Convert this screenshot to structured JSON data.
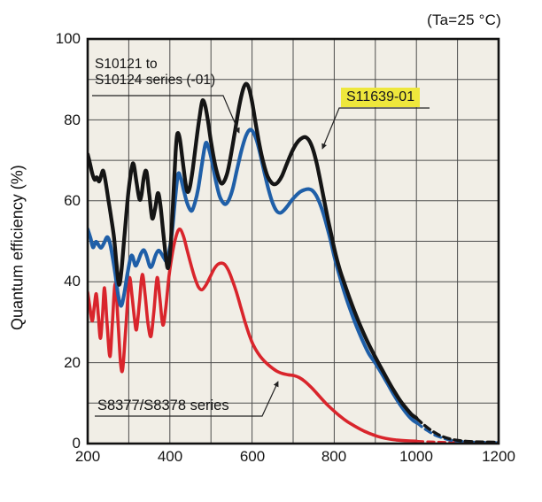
{
  "title": "(Ta=25 °C)",
  "y_axis_label": "Quantum efficiency (%)",
  "annotations": {
    "s10121_line1": "S10121 to",
    "s10121_line2": "S10124 series (-01)",
    "s11639": "S11639-01",
    "s8377": "S8377/S8378 series"
  },
  "colors": {
    "black_series": "#151515",
    "blue_series": "#1f5fa8",
    "red_series": "#d9252c",
    "highlight_yellow": "#eee73c",
    "plot_background": "#f1eee6",
    "gridline": "#4d4d4d",
    "frame": "#111111"
  },
  "chart_data": {
    "type": "line",
    "title": "(Ta=25 °C)",
    "xlabel": "",
    "ylabel": "Quantum efficiency (%)",
    "xlim": [
      200,
      1200
    ],
    "ylim": [
      0,
      100
    ],
    "x_ticks": [
      200,
      400,
      600,
      800,
      1000,
      1200
    ],
    "y_ticks": [
      0,
      20,
      40,
      60,
      80,
      100
    ],
    "x_grid_step": 100,
    "y_grid_step": 10,
    "grid": true,
    "legend_position": "annotated-on-chart",
    "dashed_beyond_x": 1000,
    "series": [
      {
        "name": "S11639-01",
        "color": "#151515",
        "width": 4.3,
        "points": [
          [
            200,
            71.5
          ],
          [
            205,
            69.5
          ],
          [
            211,
            66.8
          ],
          [
            217,
            65.2
          ],
          [
            222,
            65.8
          ],
          [
            228,
            64.8
          ],
          [
            233,
            66.3
          ],
          [
            238,
            67.4
          ],
          [
            244,
            64.5
          ],
          [
            250,
            60.5
          ],
          [
            257,
            56
          ],
          [
            264,
            51
          ],
          [
            270,
            44.5
          ],
          [
            276,
            39.3
          ],
          [
            282,
            42.5
          ],
          [
            290,
            52
          ],
          [
            299,
            62
          ],
          [
            307,
            68
          ],
          [
            312,
            69
          ],
          [
            319,
            64.5
          ],
          [
            326,
            60.4
          ],
          [
            331,
            61.5
          ],
          [
            337,
            66
          ],
          [
            343,
            67.2
          ],
          [
            350,
            61.5
          ],
          [
            357,
            55.7
          ],
          [
            364,
            58
          ],
          [
            371,
            61.9
          ],
          [
            377,
            59
          ],
          [
            384,
            52
          ],
          [
            391,
            45.5
          ],
          [
            396,
            43.5
          ],
          [
            402,
            49
          ],
          [
            408,
            60
          ],
          [
            414,
            72
          ],
          [
            418,
            76.5
          ],
          [
            424,
            75.5
          ],
          [
            431,
            70
          ],
          [
            438,
            64.5
          ],
          [
            443,
            62.2
          ],
          [
            449,
            63.5
          ],
          [
            456,
            68
          ],
          [
            464,
            74.5
          ],
          [
            472,
            80.5
          ],
          [
            479,
            84.7
          ],
          [
            486,
            83.5
          ],
          [
            493,
            79.5
          ],
          [
            501,
            74
          ],
          [
            510,
            69
          ],
          [
            518,
            65.8
          ],
          [
            525,
            64.3
          ],
          [
            532,
            64.8
          ],
          [
            540,
            67
          ],
          [
            549,
            71.5
          ],
          [
            559,
            77.5
          ],
          [
            569,
            83.5
          ],
          [
            578,
            87.5
          ],
          [
            585,
            88.9
          ],
          [
            592,
            88
          ],
          [
            600,
            84.5
          ],
          [
            609,
            79
          ],
          [
            618,
            73.8
          ],
          [
            628,
            69.3
          ],
          [
            638,
            66
          ],
          [
            648,
            64.4
          ],
          [
            656,
            64.1
          ],
          [
            664,
            64.7
          ],
          [
            673,
            66.2
          ],
          [
            683,
            68.7
          ],
          [
            693,
            71.2
          ],
          [
            703,
            73.3
          ],
          [
            713,
            74.8
          ],
          [
            723,
            75.6
          ],
          [
            731,
            75.7
          ],
          [
            740,
            74.7
          ],
          [
            749,
            72.5
          ],
          [
            758,
            69
          ],
          [
            767,
            64.5
          ],
          [
            776,
            59.8
          ],
          [
            785,
            55.3
          ],
          [
            793,
            51.5
          ],
          [
            801,
            47.8
          ],
          [
            812,
            43.5
          ],
          [
            824,
            39.8
          ],
          [
            837,
            36
          ],
          [
            850,
            32.5
          ],
          [
            864,
            29
          ],
          [
            878,
            25.8
          ],
          [
            892,
            22.9
          ],
          [
            906,
            20.2
          ],
          [
            920,
            17.6
          ],
          [
            934,
            15
          ],
          [
            948,
            12.6
          ],
          [
            962,
            10.4
          ],
          [
            976,
            8.6
          ],
          [
            988,
            7.2
          ],
          [
            1000,
            6.3
          ]
        ],
        "points_dashed": [
          [
            1000,
            6.3
          ],
          [
            1015,
            4.9
          ],
          [
            1030,
            3.7
          ],
          [
            1045,
            2.7
          ],
          [
            1060,
            1.9
          ],
          [
            1080,
            1.2
          ],
          [
            1100,
            0.8
          ],
          [
            1130,
            0.5
          ],
          [
            1160,
            0.4
          ],
          [
            1200,
            0.35
          ]
        ]
      },
      {
        "name": "S10121 to S10124 series (-01)",
        "color": "#1f5fa8",
        "width": 4.1,
        "points": [
          [
            200,
            53
          ],
          [
            207,
            50.8
          ],
          [
            213,
            48.5
          ],
          [
            220,
            49.9
          ],
          [
            227,
            49
          ],
          [
            233,
            48.4
          ],
          [
            240,
            49.6
          ],
          [
            247,
            51
          ],
          [
            253,
            50
          ],
          [
            260,
            46.5
          ],
          [
            267,
            42
          ],
          [
            274,
            36.8
          ],
          [
            281,
            34
          ],
          [
            288,
            36.5
          ],
          [
            296,
            41.5
          ],
          [
            304,
            45.8
          ],
          [
            309,
            46.3
          ],
          [
            316,
            44
          ],
          [
            322,
            44.9
          ],
          [
            330,
            47
          ],
          [
            337,
            47.8
          ],
          [
            344,
            46.2
          ],
          [
            351,
            43.8
          ],
          [
            357,
            44
          ],
          [
            365,
            46.5
          ],
          [
            372,
            47.7
          ],
          [
            379,
            47
          ],
          [
            386,
            45.8
          ],
          [
            392,
            45.2
          ],
          [
            399,
            47.8
          ],
          [
            406,
            53
          ],
          [
            413,
            60.5
          ],
          [
            420,
            66.6
          ],
          [
            427,
            65.4
          ],
          [
            434,
            62.5
          ],
          [
            441,
            59.8
          ],
          [
            448,
            58
          ],
          [
            454,
            57.6
          ],
          [
            461,
            59.5
          ],
          [
            469,
            63
          ],
          [
            478,
            69
          ],
          [
            487,
            74.2
          ],
          [
            495,
            72.8
          ],
          [
            503,
            69.5
          ],
          [
            512,
            64.8
          ],
          [
            521,
            61.2
          ],
          [
            529,
            59.6
          ],
          [
            536,
            59.2
          ],
          [
            544,
            60.3
          ],
          [
            553,
            63
          ],
          [
            563,
            67.5
          ],
          [
            574,
            72.3
          ],
          [
            585,
            76
          ],
          [
            594,
            77.5
          ],
          [
            602,
            77.1
          ],
          [
            611,
            75
          ],
          [
            620,
            71.5
          ],
          [
            630,
            67
          ],
          [
            640,
            62.8
          ],
          [
            650,
            59.5
          ],
          [
            659,
            57.6
          ],
          [
            668,
            57
          ],
          [
            677,
            57.6
          ],
          [
            687,
            58.8
          ],
          [
            697,
            60.2
          ],
          [
            707,
            61.3
          ],
          [
            717,
            62.2
          ],
          [
            727,
            62.7
          ],
          [
            737,
            62.9
          ],
          [
            746,
            62.6
          ],
          [
            755,
            61.5
          ],
          [
            764,
            59.6
          ],
          [
            773,
            57
          ],
          [
            782,
            53.8
          ],
          [
            791,
            50.3
          ],
          [
            800,
            46.3
          ],
          [
            812,
            41.8
          ],
          [
            825,
            37.3
          ],
          [
            840,
            32.8
          ],
          [
            855,
            28.8
          ],
          [
            870,
            25.2
          ],
          [
            885,
            22.1
          ],
          [
            900,
            19.9
          ],
          [
            915,
            17.4
          ],
          [
            930,
            14.8
          ],
          [
            945,
            12.1
          ],
          [
            960,
            9.7
          ],
          [
            975,
            7.6
          ],
          [
            990,
            5.9
          ],
          [
            1000,
            5.2
          ]
        ],
        "points_dashed": [
          [
            1000,
            5.2
          ],
          [
            1015,
            4
          ],
          [
            1030,
            3
          ],
          [
            1045,
            2.1
          ],
          [
            1060,
            1.5
          ],
          [
            1080,
            0.9
          ],
          [
            1100,
            0.6
          ],
          [
            1130,
            0.4
          ],
          [
            1160,
            0.3
          ],
          [
            1200,
            0.25
          ]
        ]
      },
      {
        "name": "S8377/S8378 series",
        "color": "#d9252c",
        "width": 3.6,
        "points": [
          [
            200,
            37.4
          ],
          [
            205,
            34
          ],
          [
            211,
            30.3
          ],
          [
            216,
            33.8
          ],
          [
            221,
            37
          ],
          [
            226,
            31.5
          ],
          [
            231,
            26
          ],
          [
            236,
            31.5
          ],
          [
            241,
            38.5
          ],
          [
            247,
            30
          ],
          [
            254,
            21.5
          ],
          [
            260,
            29.5
          ],
          [
            267,
            39.5
          ],
          [
            274,
            30
          ],
          [
            280,
            20
          ],
          [
            285,
            18.2
          ],
          [
            291,
            26
          ],
          [
            297,
            35
          ],
          [
            302,
            41
          ],
          [
            308,
            36.5
          ],
          [
            314,
            30.8
          ],
          [
            319,
            28.2
          ],
          [
            326,
            35
          ],
          [
            333,
            41.8
          ],
          [
            340,
            36.5
          ],
          [
            347,
            29.5
          ],
          [
            354,
            26.5
          ],
          [
            361,
            32.5
          ],
          [
            369,
            41
          ],
          [
            376,
            35.5
          ],
          [
            383,
            29.3
          ],
          [
            390,
            33.5
          ],
          [
            398,
            41.5
          ],
          [
            407,
            47.5
          ],
          [
            416,
            51.5
          ],
          [
            424,
            53
          ],
          [
            433,
            51.3
          ],
          [
            442,
            47.8
          ],
          [
            451,
            44.3
          ],
          [
            460,
            41.2
          ],
          [
            469,
            38.8
          ],
          [
            478,
            38
          ],
          [
            488,
            39.2
          ],
          [
            498,
            41.2
          ],
          [
            508,
            43.2
          ],
          [
            517,
            44.3
          ],
          [
            526,
            44.6
          ],
          [
            534,
            44.2
          ],
          [
            543,
            42.7
          ],
          [
            552,
            40.4
          ],
          [
            562,
            37.4
          ],
          [
            572,
            33.9
          ],
          [
            582,
            30.4
          ],
          [
            592,
            27.2
          ],
          [
            602,
            24.6
          ],
          [
            614,
            22.4
          ],
          [
            626,
            20.8
          ],
          [
            638,
            19.6
          ],
          [
            650,
            18.6
          ],
          [
            662,
            17.8
          ],
          [
            674,
            17.3
          ],
          [
            688,
            17
          ],
          [
            702,
            16.8
          ],
          [
            715,
            16.3
          ],
          [
            728,
            15.4
          ],
          [
            742,
            14.1
          ],
          [
            756,
            12.6
          ],
          [
            770,
            11
          ],
          [
            785,
            9.4
          ],
          [
            800,
            8
          ],
          [
            815,
            6.7
          ],
          [
            832,
            5.4
          ],
          [
            850,
            4.3
          ],
          [
            868,
            3.3
          ],
          [
            886,
            2.5
          ],
          [
            905,
            1.8
          ],
          [
            925,
            1.3
          ],
          [
            950,
            0.9
          ],
          [
            975,
            0.7
          ],
          [
            1000,
            0.6
          ]
        ],
        "points_dashed": [
          [
            1000,
            0.6
          ],
          [
            1030,
            0.45
          ],
          [
            1060,
            0.35
          ],
          [
            1100,
            0.25
          ],
          [
            1150,
            0.2
          ],
          [
            1200,
            0.15
          ]
        ]
      }
    ]
  }
}
